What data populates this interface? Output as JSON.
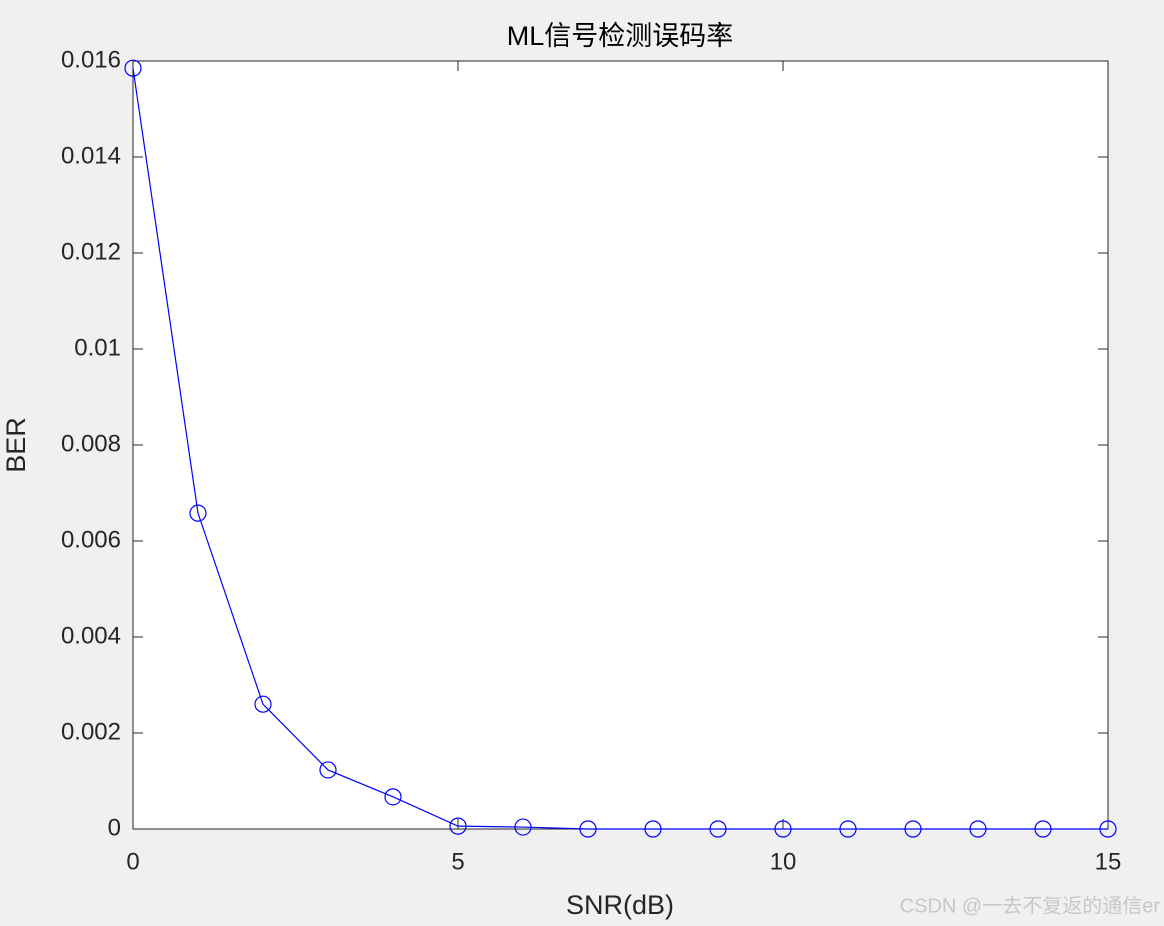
{
  "chart_data": {
    "type": "line",
    "title": "ML信号检测误码率",
    "x_label": "SNR(dB)",
    "y_label": "BER",
    "x": [
      0,
      1,
      2,
      3,
      4,
      5,
      6,
      7,
      8,
      9,
      10,
      11,
      12,
      13,
      14,
      15
    ],
    "series": [
      {
        "name": "BER",
        "color": "#0000ff",
        "values": [
          0.01585,
          0.00658,
          0.0026,
          0.00123,
          0.00067,
          6e-05,
          4e-05,
          0,
          0,
          0,
          0,
          0,
          0,
          0,
          0,
          0
        ]
      }
    ],
    "xlim": [
      0,
      15
    ],
    "xticks": [
      0,
      5,
      10,
      15
    ],
    "ylim": [
      0,
      0.016
    ],
    "yticks": [
      0,
      0.002,
      0.004,
      0.006,
      0.008,
      0.01,
      0.012,
      0.014,
      0.016
    ],
    "grid": false,
    "marker": "circle",
    "watermark": "CSDN @一去不复返的通信er"
  }
}
